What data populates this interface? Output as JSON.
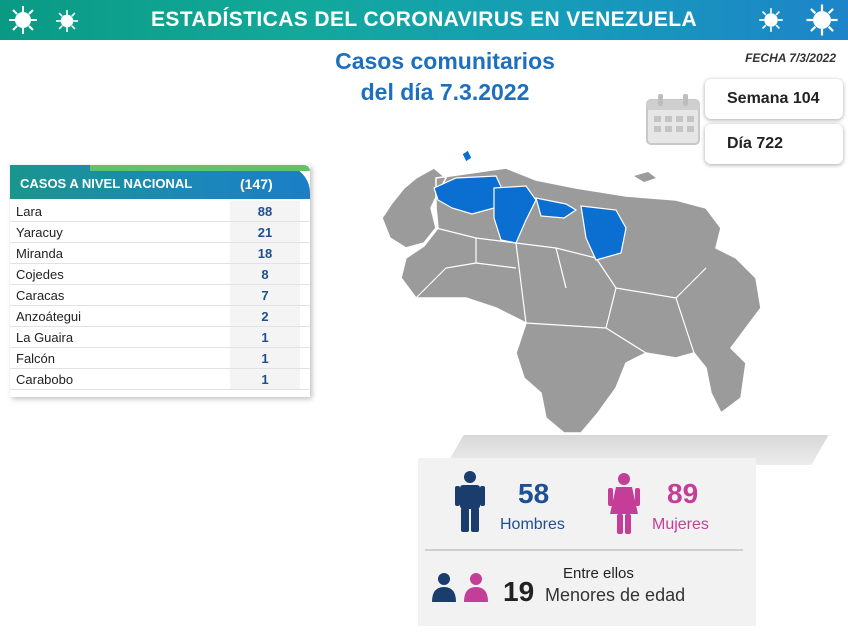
{
  "header": {
    "title": "ESTADÍSTICAS DEL CORONAVIRUS EN VENEZUELA"
  },
  "subtitle": {
    "line1": "Casos comunitarios",
    "line2": "del día 7.3.2022"
  },
  "fecha": "FECHA 7/3/2022",
  "semana": "Semana 104",
  "dia": "Día 722",
  "table": {
    "title": "CASOS A NIVEL NACIONAL",
    "total": "(147)",
    "rows": [
      {
        "name": "Lara",
        "value": "88"
      },
      {
        "name": "Yaracuy",
        "value": "21"
      },
      {
        "name": "Miranda",
        "value": "18"
      },
      {
        "name": "Cojedes",
        "value": "8"
      },
      {
        "name": "Caracas",
        "value": "7"
      },
      {
        "name": "Anzoátegui",
        "value": "2"
      },
      {
        "name": "La Guaira",
        "value": "1"
      },
      {
        "name": "Falcón",
        "value": "1"
      },
      {
        "name": "Carabobo",
        "value": "1"
      }
    ]
  },
  "demographics": {
    "men_count": "58",
    "men_label": "Hombres",
    "women_count": "89",
    "women_label": "Mujeres",
    "minors_intro": "Entre ellos",
    "minors_count": "19",
    "minors_label": "Menores de edad"
  },
  "colors": {
    "accent_blue": "#1e6fbe",
    "men": "#1a3d6e",
    "women": "#c43d97",
    "map_highlight": "#0a6fd1",
    "map_base": "#9b9b9b"
  }
}
